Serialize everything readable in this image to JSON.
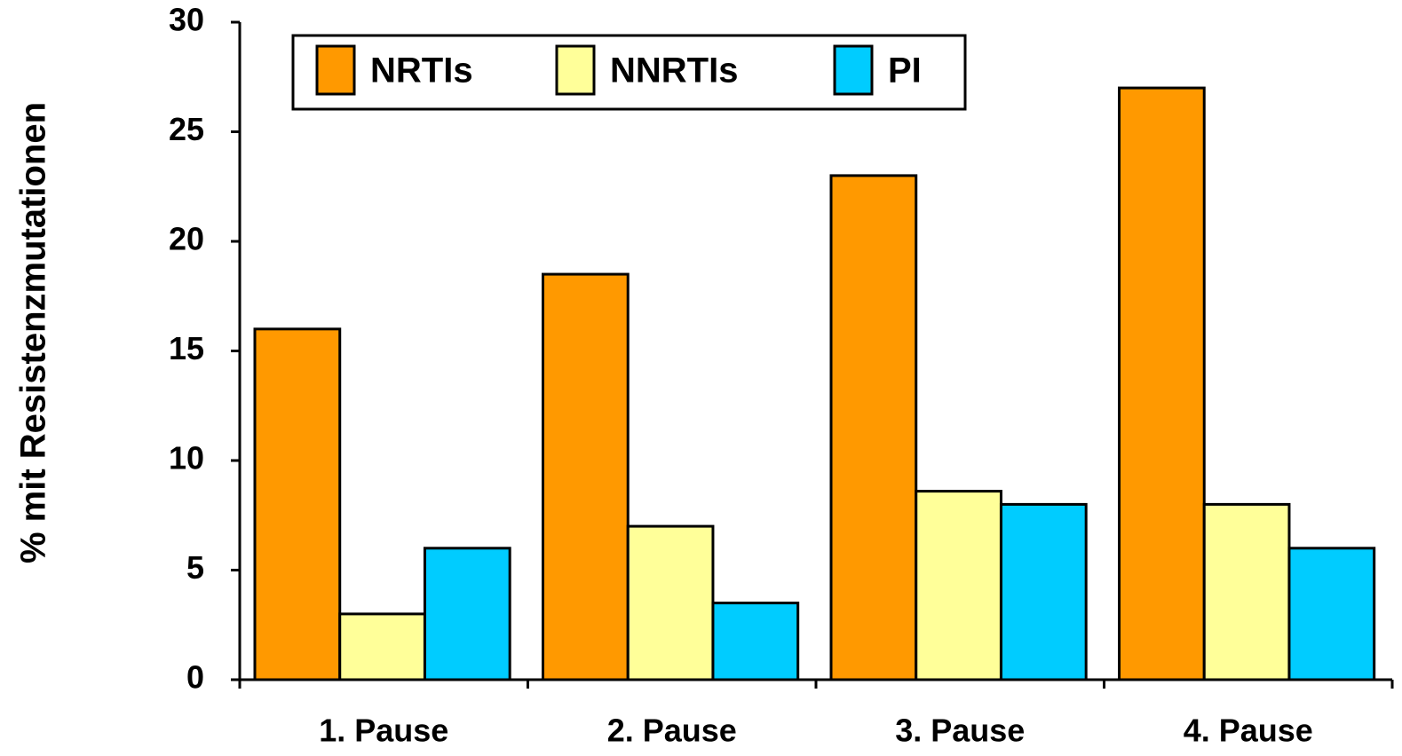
{
  "chart_data": {
    "type": "bar",
    "y_label": "% mit Resistenzmutationen",
    "categories": [
      "1. Pause",
      "2. Pause",
      "3. Pause",
      "4. Pause"
    ],
    "series": [
      {
        "name": "NRTIs",
        "color": "#ff9900",
        "values": [
          16,
          18.5,
          23,
          27
        ]
      },
      {
        "name": "NNRTIs",
        "color": "#ffff99",
        "values": [
          3,
          7,
          8.6,
          8
        ]
      },
      {
        "name": "PI",
        "color": "#00ccff",
        "values": [
          6,
          3.5,
          8,
          6
        ]
      }
    ],
    "ylim": [
      0,
      30
    ],
    "yticks": [
      0,
      5,
      10,
      15,
      20,
      25,
      30
    ],
    "legend": "top"
  }
}
